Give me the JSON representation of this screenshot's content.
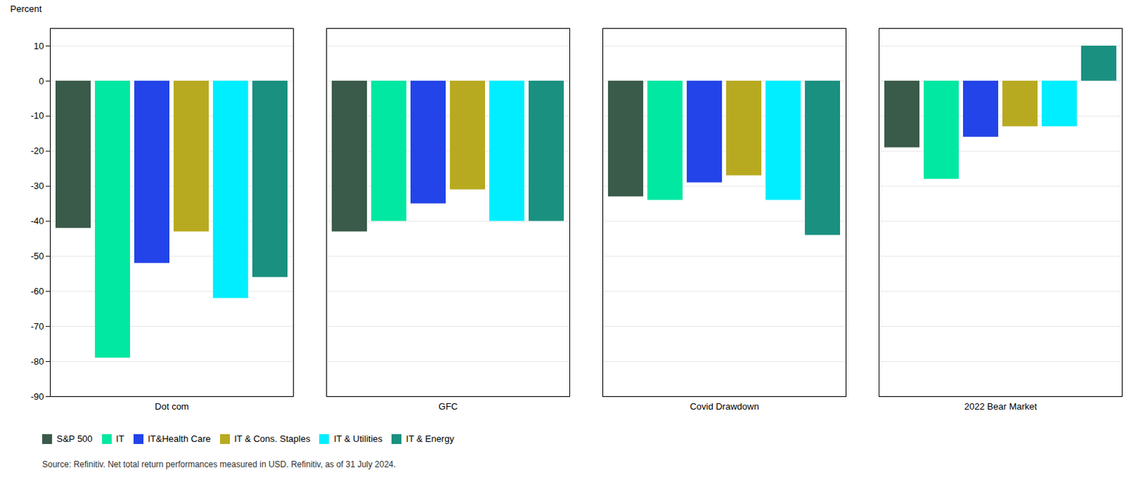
{
  "chart_data": {
    "type": "bar",
    "ylabel": "Percent",
    "annotations": [
      "Source: Refinitiv. Net total return performances measured in USD. Refinitiv, as of 31 July 2024."
    ],
    "categories": [
      "Dot com",
      "GFC",
      "Covid Drawdown",
      "2022 Bear Market"
    ],
    "series": [
      {
        "name": "S&P 500",
        "color": "#3a5a4a",
        "values": [
          -42,
          -43,
          -33,
          -19
        ]
      },
      {
        "name": "IT",
        "color": "#00e8a2",
        "values": [
          -79,
          -40,
          -34,
          -28
        ]
      },
      {
        "name": "IT&Health Care",
        "color": "#2244e8",
        "values": [
          -52,
          -35,
          -29,
          -16
        ]
      },
      {
        "name": "IT & Cons. Staples",
        "color": "#b8aa20",
        "values": [
          -43,
          -31,
          -27,
          -13
        ]
      },
      {
        "name": "IT & Utilities",
        "color": "#00eeff",
        "values": [
          -62,
          -40,
          -34,
          -13
        ]
      },
      {
        "name": "IT & Energy",
        "color": "#1a9080",
        "values": [
          -56,
          -40,
          -44,
          10
        ]
      }
    ],
    "ylim": [
      -90,
      15
    ],
    "yticks": [
      10,
      0,
      -10,
      -20,
      -30,
      -40,
      -50,
      -60,
      -70,
      -80,
      -90
    ],
    "grid": true,
    "legend": "lower left"
  }
}
